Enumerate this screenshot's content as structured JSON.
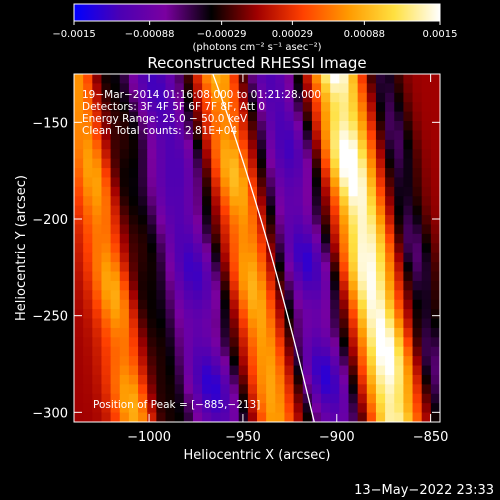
{
  "chart_data": {
    "type": "heatmap",
    "title": "Reconstructed RHESSI Image",
    "xlabel": "Heliocentric X (arcsec)",
    "ylabel": "Heliocentric Y (arcsec)",
    "xlim": [
      -1040,
      -845
    ],
    "ylim": [
      -305,
      -125
    ],
    "x_ticks": [
      -1000,
      -950,
      -900,
      -850
    ],
    "x_tick_labels": [
      "−1000",
      "−950",
      "−900",
      "−850"
    ],
    "y_ticks": [
      -300,
      -250,
      -200,
      -150
    ],
    "y_tick_labels": [
      "−300",
      "−250",
      "−200",
      "−150"
    ],
    "colorbar": {
      "min": -0.0015,
      "max": 0.0015,
      "ticks": [
        -0.0015,
        -0.00088,
        -0.00029,
        0.00029,
        0.00088,
        0.0015
      ],
      "tick_labels": [
        "−0.0015",
        "−0.00088",
        "−0.00029",
        "0.00029",
        "0.00088",
        "0.0015"
      ],
      "units_label": "(photons cm⁻² s⁻¹ asec⁻²)",
      "palette": [
        "#0000ff",
        "#4b00b4",
        "#7a00a0",
        "#000000",
        "#a00000",
        "#ff4000",
        "#ff9a00",
        "#ffe040",
        "#ffffff"
      ]
    },
    "annotations": {
      "time_range": "19−Mar−2014 01:16:08.000 to 01:21:28.000",
      "detectors": "Detectors: 3F 4F 5F 6F 7F 8F, Att 0",
      "energy_range": "Energy Range: 25.0 − 50.0 keV",
      "clean_counts": "Clean     Total counts: 2.81E+04",
      "peak_position": "Position of Peak = [−885,−213]"
    },
    "peak": {
      "x": -885,
      "y": -213
    },
    "limb_arc": [
      [
        -966,
        -125
      ],
      [
        -945,
        -180
      ],
      [
        -928,
        -240
      ],
      [
        -912,
        -305
      ]
    ],
    "image_model": {
      "stripe_slope_x_per_y": 0.18,
      "pivot_y": -215,
      "stripes": [
        {
          "x": -1023,
          "amp": 0.00075,
          "width": 12
        },
        {
          "x": -1010,
          "amp": -0.00035,
          "width": 8
        },
        {
          "x": -980,
          "amp": -0.0011,
          "width": 18
        },
        {
          "x": -948,
          "amp": 0.0009,
          "width": 13
        },
        {
          "x": -918,
          "amp": -0.0011,
          "width": 17
        },
        {
          "x": -885,
          "amp": 0.0015,
          "width": 14
        },
        {
          "x": -860,
          "amp": -0.0006,
          "width": 10
        }
      ],
      "grid_nx": 40,
      "grid_ny": 37
    }
  },
  "footer": {
    "timestamp": "13−May−2022 23:33"
  }
}
